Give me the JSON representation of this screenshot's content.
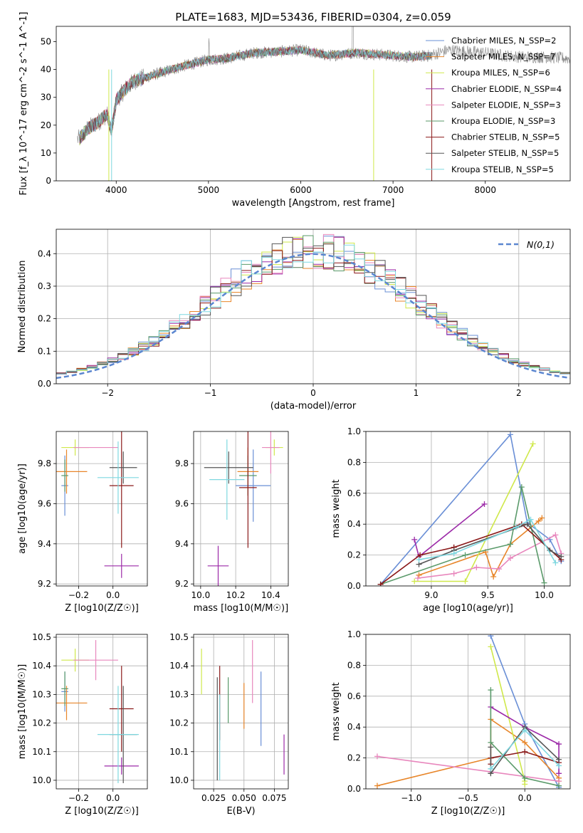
{
  "figure_title": "PLATE=1683, MJD=53436, FIBERID=0304, z=0.059",
  "colors": [
    "#6a8fd6",
    "#e8862a",
    "#cfe84a",
    "#9c2aa8",
    "#e887bd",
    "#5a9a6a",
    "#8b1a1a",
    "#555555",
    "#7fd8e0"
  ],
  "chart_data": [
    {
      "id": "spectrum",
      "type": "line",
      "title": "PLATE=1683, MJD=53436, FIBERID=0304, z=0.059",
      "xlabel": "wavelength [Angstrom, rest frame]",
      "ylabel": "Flux [f_λ 10^-17 erg cm^-2 s^-1 A^-1]",
      "xlim": [
        3350,
        8920
      ],
      "ylim": [
        0,
        55.5
      ],
      "xticks": [
        4000,
        5000,
        6000,
        7000,
        8000
      ],
      "yticks": [
        0,
        10,
        20,
        30,
        40,
        50
      ],
      "grid": false,
      "legend_position": "top-right",
      "legend": [
        "Chabrier MILES, N_SSP=2",
        "Salpeter MILES, N_SSP=7",
        "Kroupa MILES, N_SSP=6",
        "Chabrier ELODIE, N_SSP=4",
        "Salpeter ELODIE, N_SSP=3",
        "Kroupa ELODIE, N_SSP=3",
        "Chabrier STELIB, N_SSP=5",
        "Salpeter STELIB, N_SSP=5",
        "Kroupa STELIB, N_SSP=5"
      ],
      "continuum": {
        "x": [
          3600,
          3700,
          3800,
          3900,
          3950,
          4000,
          4100,
          4200,
          4300,
          4400,
          4500,
          4700,
          5000,
          5200,
          5500,
          5800,
          6000,
          6300,
          6600,
          6800,
          7000,
          7200,
          7400,
          7600,
          7800,
          8000,
          8200,
          8400,
          8600,
          8900
        ],
        "y": [
          15,
          19,
          21,
          24,
          18,
          29,
          33,
          36,
          37,
          38,
          39,
          41,
          43.5,
          44,
          46,
          46.5,
          47,
          45,
          46,
          45.5,
          45,
          44.5,
          45,
          47,
          46.5,
          46,
          45,
          44.5,
          44.5,
          44
        ]
      },
      "observed_extent": [
        3580,
        8920
      ],
      "model_extent": [
        3600,
        7420
      ]
    },
    {
      "id": "residuals",
      "type": "histogram",
      "xlabel": "(data-model)/error",
      "ylabel": "Normed distribution",
      "xlim": [
        -2.5,
        2.5
      ],
      "ylim": [
        0,
        0.475
      ],
      "xticks": [
        -2,
        -1,
        0,
        1,
        2
      ],
      "yticks": [
        0.0,
        0.1,
        0.2,
        0.3,
        0.4
      ],
      "grid": true,
      "legend": [
        "N(0,1)"
      ],
      "legend_position": "top-right",
      "bin_width": 0.1,
      "reference_curve": "normal(0,1)"
    },
    {
      "id": "age_vs_Z",
      "type": "errorbar",
      "xlabel": "Z [log10(Z/Z☉)]",
      "ylabel": "age [log10(age/yr)]",
      "xlim": [
        -0.33,
        0.2
      ],
      "ylim": [
        9.19,
        9.96
      ],
      "xticks": [
        -0.2,
        0.0
      ],
      "yticks": [
        9.2,
        9.4,
        9.6,
        9.8
      ],
      "grid": true,
      "points": [
        {
          "x": -0.28,
          "y": 9.69,
          "xerr": 0.02,
          "yerr": 0.15
        },
        {
          "x": -0.27,
          "y": 9.76,
          "xerr": 0.12,
          "yerr": 0.11
        },
        {
          "x": -0.22,
          "y": 9.88,
          "xerr": 0.08,
          "yerr": 0.04
        },
        {
          "x": 0.05,
          "y": 9.29,
          "xerr": 0.1,
          "yerr": 0.06
        },
        {
          "x": -0.1,
          "y": 9.88,
          "xerr": 0.13,
          "yerr": 0.0
        },
        {
          "x": -0.28,
          "y": 9.74,
          "xerr": 0.02,
          "yerr": 0.08
        },
        {
          "x": 0.05,
          "y": 9.69,
          "xerr": 0.07,
          "yerr": 0.31
        },
        {
          "x": 0.06,
          "y": 9.78,
          "xerr": 0.08,
          "yerr": 0.08
        },
        {
          "x": 0.03,
          "y": 9.73,
          "xerr": 0.12,
          "yerr": 0.18
        }
      ]
    },
    {
      "id": "age_vs_mass",
      "type": "errorbar",
      "xlabel": "mass [log10(M/M☉)]",
      "ylabel": "",
      "xlim": [
        9.96,
        10.5
      ],
      "ylim": [
        9.19,
        9.96
      ],
      "xticks": [
        10.0,
        10.2,
        10.4
      ],
      "yticks": [
        9.2,
        9.4,
        9.6,
        9.8
      ],
      "grid": true,
      "points": [
        {
          "x": 10.3,
          "y": 9.69,
          "xerr": 0.1,
          "yerr": 0.18
        },
        {
          "x": 10.27,
          "y": 9.76,
          "xerr": 0.06,
          "yerr": 0.12
        },
        {
          "x": 10.42,
          "y": 9.88,
          "xerr": 0.05,
          "yerr": 0.04
        },
        {
          "x": 10.1,
          "y": 9.29,
          "xerr": 0.06,
          "yerr": 0.1
        },
        {
          "x": 10.4,
          "y": 9.88,
          "xerr": 0.05,
          "yerr": 0.13
        },
        {
          "x": 10.27,
          "y": 9.74,
          "xerr": 0.05,
          "yerr": 0.1
        },
        {
          "x": 10.27,
          "y": 9.68,
          "xerr": 0.05,
          "yerr": 0.3
        },
        {
          "x": 10.16,
          "y": 9.78,
          "xerr": 0.14,
          "yerr": 0.08
        },
        {
          "x": 10.15,
          "y": 9.72,
          "xerr": 0.1,
          "yerr": 0.2
        }
      ]
    },
    {
      "id": "mass_weight_vs_age",
      "type": "line",
      "xlabel": "age [log10(age/yr)]",
      "ylabel": "mass weight",
      "xlim": [
        8.42,
        10.23
      ],
      "ylim": [
        0,
        1.0
      ],
      "xticks": [
        9.0,
        9.5,
        10.0
      ],
      "yticks": [
        0.0,
        0.2,
        0.4,
        0.6,
        0.8,
        1.0
      ],
      "grid": true,
      "series": [
        {
          "x": [
            8.55,
            9.7,
            9.85,
            10.05,
            10.15
          ],
          "y": [
            0.01,
            0.98,
            0.41,
            0.3,
            0.16
          ]
        },
        {
          "x": [
            8.89,
            9.48,
            9.55,
            9.7,
            9.95,
            9.98
          ],
          "y": [
            0.07,
            0.22,
            0.06,
            0.27,
            0.42,
            0.44
          ]
        },
        {
          "x": [
            8.85,
            9.3,
            9.9
          ],
          "y": [
            0.03,
            0.03,
            0.92
          ]
        },
        {
          "x": [
            8.85,
            8.89,
            9.47
          ],
          "y": [
            0.3,
            0.19,
            0.53
          ]
        },
        {
          "x": [
            8.88,
            9.2,
            9.4,
            9.6,
            9.7,
            10.1,
            10.15
          ],
          "y": [
            0.05,
            0.08,
            0.12,
            0.11,
            0.18,
            0.33,
            0.21
          ]
        },
        {
          "x": [
            8.55,
            9.3,
            9.7,
            9.8,
            10.0
          ],
          "y": [
            0.01,
            0.2,
            0.27,
            0.64,
            0.02
          ]
        },
        {
          "x": [
            8.55,
            8.9,
            9.2,
            9.8,
            10.15
          ],
          "y": [
            0.01,
            0.2,
            0.25,
            0.4,
            0.17
          ]
        },
        {
          "x": [
            8.89,
            9.2,
            9.85,
            10.05,
            10.15
          ],
          "y": [
            0.14,
            0.23,
            0.4,
            0.23,
            0.19
          ]
        },
        {
          "x": [
            8.89,
            9.2,
            9.75,
            9.88,
            10.1
          ],
          "y": [
            0.17,
            0.21,
            0.38,
            0.43,
            0.15
          ]
        }
      ]
    },
    {
      "id": "mass_vs_Z",
      "type": "errorbar",
      "xlabel": "Z [log10(Z/Z☉)]",
      "ylabel": "mass [log10(M/M☉)]",
      "xlim": [
        -0.33,
        0.2
      ],
      "ylim": [
        9.97,
        10.51
      ],
      "xticks": [
        -0.2,
        0.0
      ],
      "yticks": [
        10.0,
        10.1,
        10.2,
        10.3,
        10.4,
        10.5
      ],
      "grid": true,
      "points": [
        {
          "x": -0.28,
          "y": 10.31,
          "xerr": 0.02,
          "yerr": 0.07
        },
        {
          "x": -0.27,
          "y": 10.27,
          "xerr": 0.12,
          "yerr": 0.06
        },
        {
          "x": -0.22,
          "y": 10.42,
          "xerr": 0.08,
          "yerr": 0.04
        },
        {
          "x": 0.05,
          "y": 10.05,
          "xerr": 0.1,
          "yerr": 0.03
        },
        {
          "x": -0.1,
          "y": 10.42,
          "xerr": 0.13,
          "yerr": 0.07
        },
        {
          "x": -0.28,
          "y": 10.32,
          "xerr": 0.02,
          "yerr": 0.06
        },
        {
          "x": 0.05,
          "y": 10.25,
          "xerr": 0.07,
          "yerr": 0.15
        },
        {
          "x": 0.06,
          "y": 10.16,
          "xerr": 0.08,
          "yerr": 0.17
        },
        {
          "x": 0.03,
          "y": 10.16,
          "xerr": 0.12,
          "yerr": 0.17
        }
      ]
    },
    {
      "id": "mass_vs_ebv",
      "type": "errorbar",
      "xlabel": "E(B-V)",
      "ylabel": "",
      "xlim": [
        0.0085,
        0.0865
      ],
      "ylim": [
        9.97,
        10.51
      ],
      "xticks": [
        0.025,
        0.05,
        0.075
      ],
      "yticks": [
        10.0,
        10.1,
        10.2,
        10.3,
        10.4,
        10.5
      ],
      "grid": true,
      "points": [
        {
          "x": 0.064,
          "y": 10.25,
          "yerr": 0.13
        },
        {
          "x": 0.05,
          "y": 10.26,
          "yerr": 0.08
        },
        {
          "x": 0.015,
          "y": 10.38,
          "yerr": 0.08
        },
        {
          "x": 0.083,
          "y": 10.09,
          "yerr": 0.07
        },
        {
          "x": 0.057,
          "y": 10.38,
          "yerr": 0.11
        },
        {
          "x": 0.037,
          "y": 10.28,
          "yerr": 0.08
        },
        {
          "x": 0.03,
          "y": 10.27,
          "yerr": 0.13
        },
        {
          "x": 0.028,
          "y": 10.18,
          "yerr": 0.18
        },
        {
          "x": 0.03,
          "y": 10.15,
          "yerr": 0.15
        }
      ]
    },
    {
      "id": "mass_weight_vs_Z",
      "type": "line",
      "xlabel": "Z [log10(Z/Z☉)]",
      "ylabel": "mass weight",
      "xlim": [
        -1.4,
        0.4
      ],
      "ylim": [
        0,
        1.0
      ],
      "xticks": [
        -1.0,
        -0.5,
        0.0
      ],
      "yticks": [
        0.0,
        0.2,
        0.4,
        0.6,
        0.8,
        1.0
      ],
      "grid": true,
      "series": [
        {
          "x": [
            -0.3,
            0.0,
            0.3
          ],
          "y": [
            0.99,
            0.42,
            0.01
          ]
        },
        {
          "x": [
            -1.3,
            -0.3,
            -0.3,
            0.0,
            0.3,
            0.3
          ],
          "y": [
            0.02,
            0.2,
            0.45,
            0.3,
            0.07,
            0.05
          ]
        },
        {
          "x": [
            -0.3,
            0.0,
            0.0
          ],
          "y": [
            0.92,
            0.05,
            0.03
          ]
        },
        {
          "x": [
            -0.3,
            0.0,
            0.3,
            0.3
          ],
          "y": [
            0.53,
            0.4,
            0.29,
            0.1
          ]
        },
        {
          "x": [
            -1.3,
            -0.3,
            0.3
          ],
          "y": [
            0.21,
            0.11,
            0.05
          ]
        },
        {
          "x": [
            -0.3,
            -0.3,
            0.0,
            0.3
          ],
          "y": [
            0.64,
            0.3,
            0.07,
            0.02
          ]
        },
        {
          "x": [
            -0.3,
            -0.3,
            0.0,
            0.3
          ],
          "y": [
            0.16,
            0.2,
            0.24,
            0.17
          ]
        },
        {
          "x": [
            -0.3,
            -0.3,
            0.0,
            0.3
          ],
          "y": [
            0.27,
            0.1,
            0.4,
            0.19
          ]
        },
        {
          "x": [
            -0.3,
            0.0,
            0.3
          ],
          "y": [
            0.13,
            0.38,
            0.15
          ]
        }
      ]
    }
  ]
}
